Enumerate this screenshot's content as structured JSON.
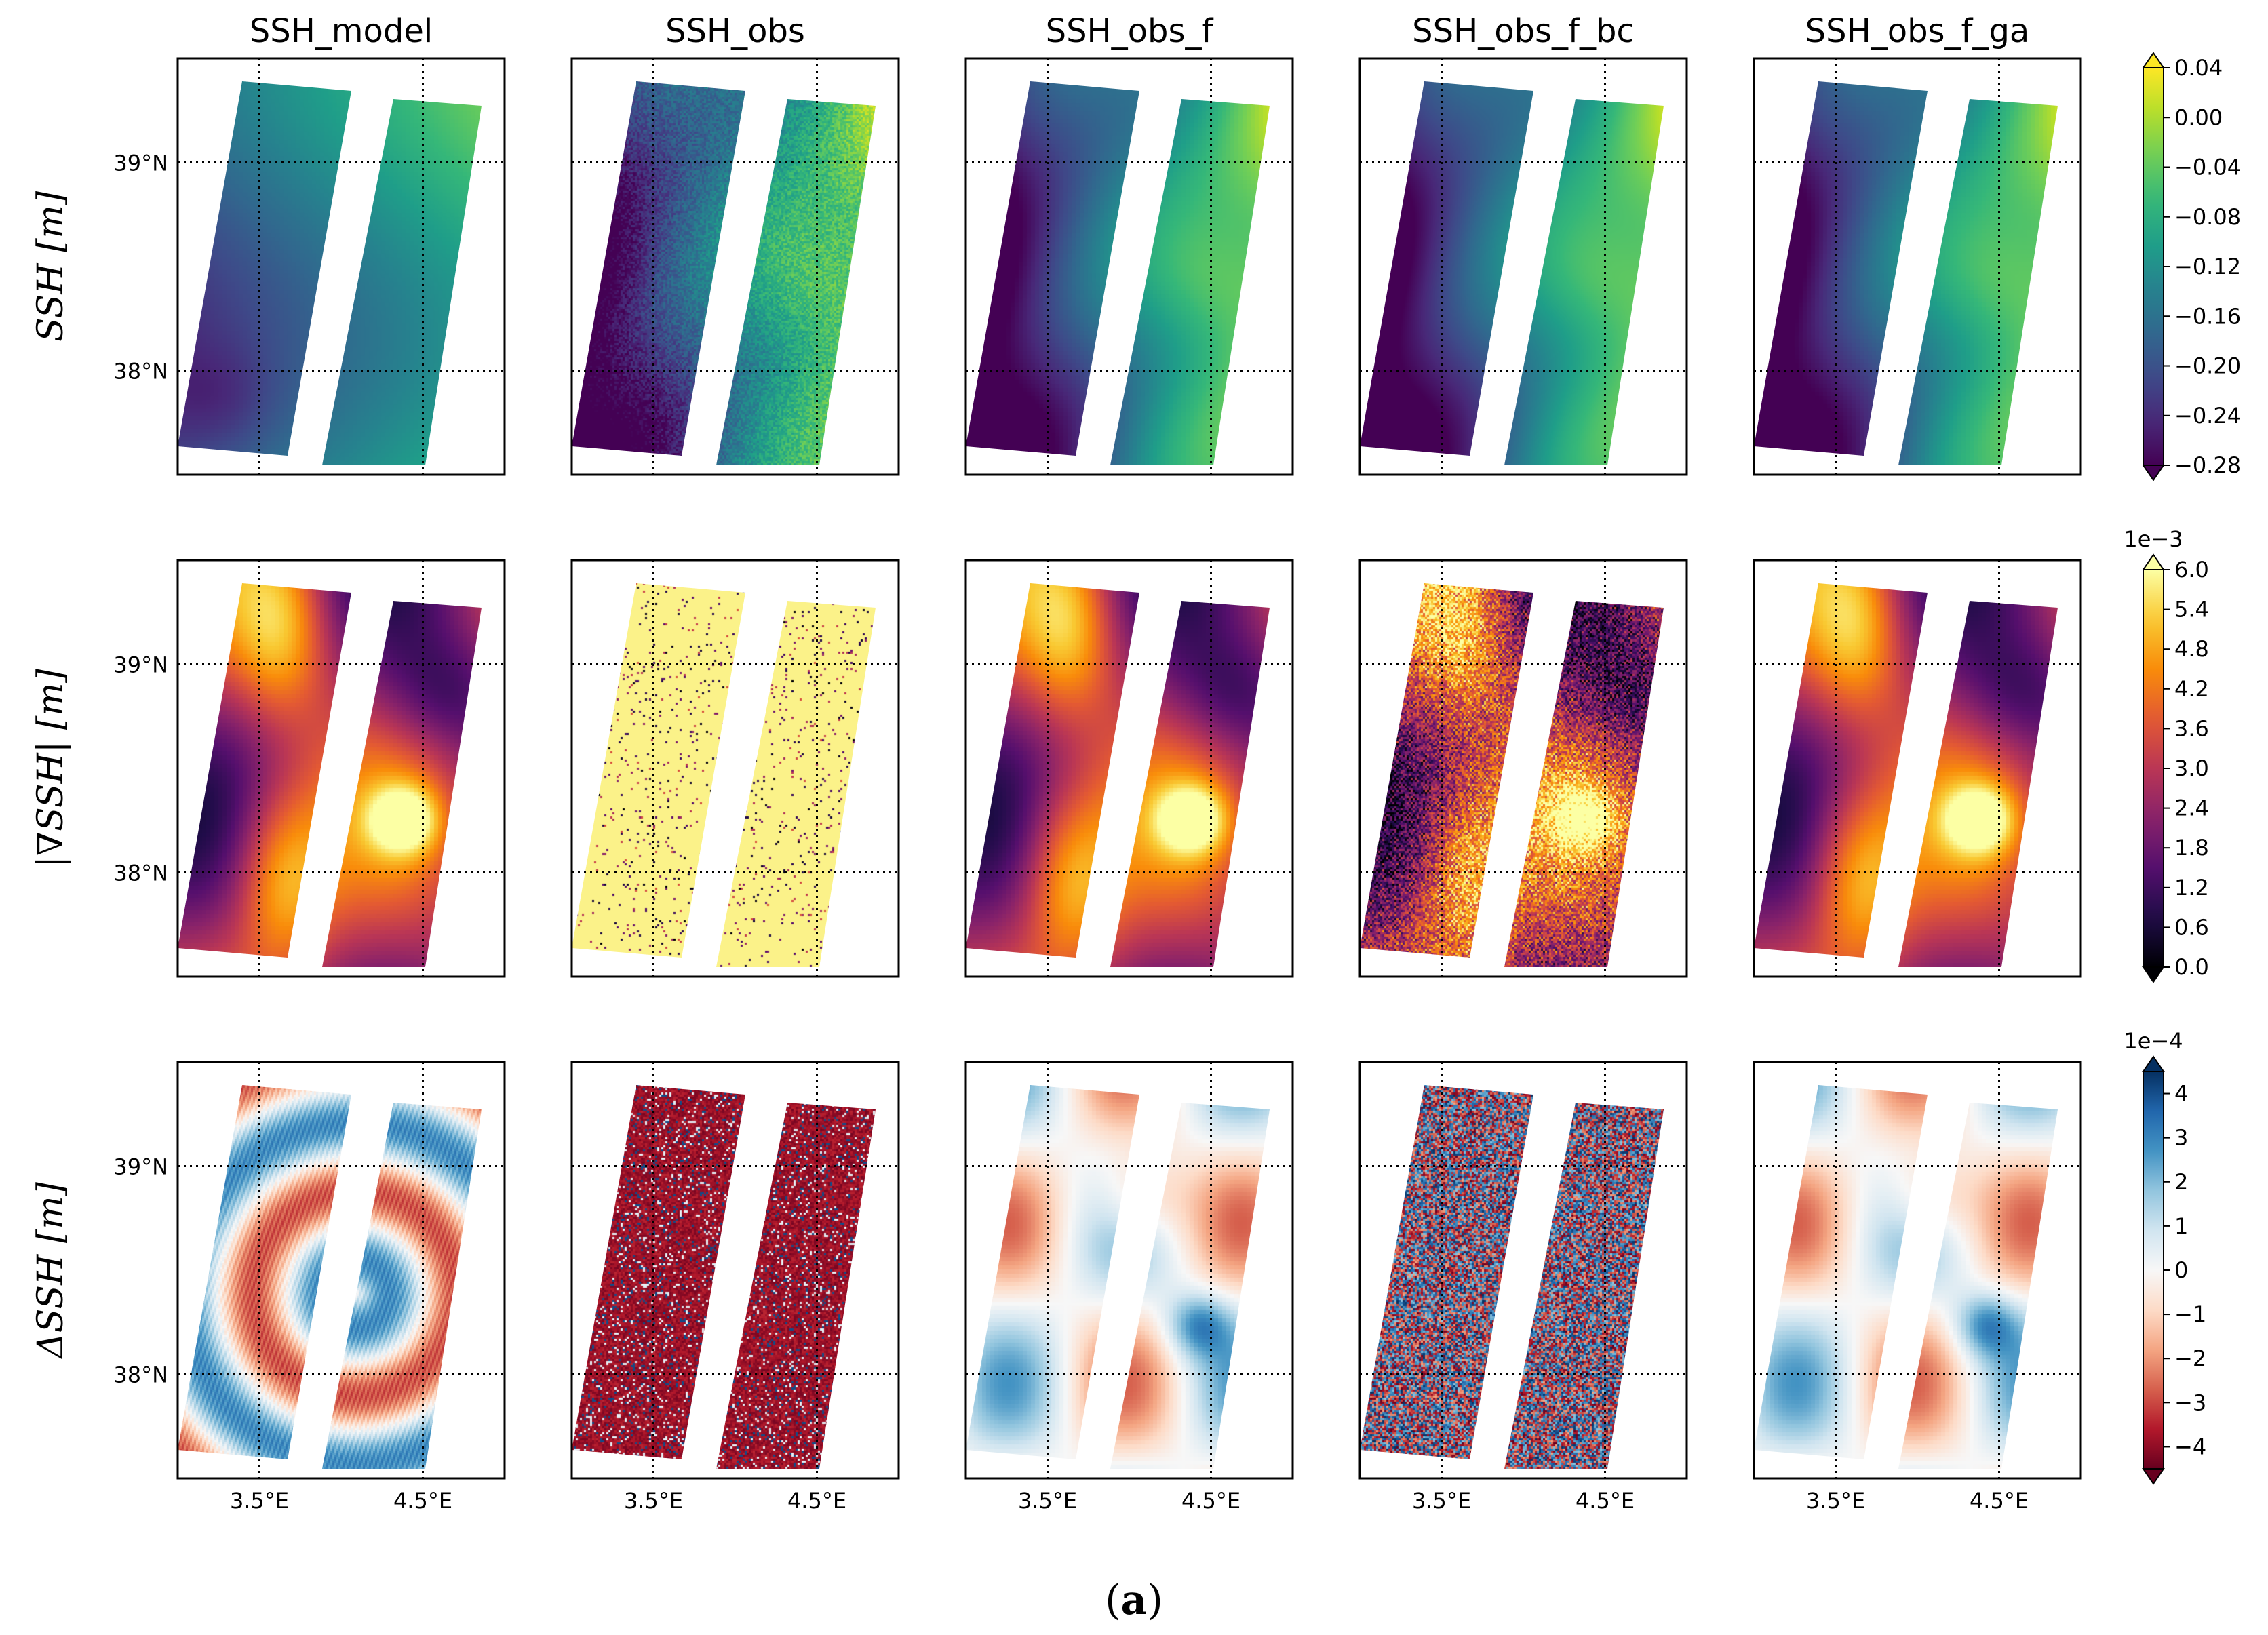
{
  "chart_data": {
    "type": "heatmap",
    "figure_label": "a",
    "columns": [
      "SSH_model",
      "SSH_obs",
      "SSH_obs_f",
      "SSH_obs_f_bc",
      "SSH_obs_f_ga"
    ],
    "lon_ticks": [
      {
        "value": 3.5,
        "label": "3.5°E"
      },
      {
        "value": 4.5,
        "label": "4.5°E"
      }
    ],
    "lat_ticks": [
      {
        "value": 39.0,
        "label": "39°N"
      },
      {
        "value": 38.0,
        "label": "38°N"
      }
    ],
    "lon_range": [
      3.0,
      5.0
    ],
    "lat_range": [
      37.5,
      39.5
    ],
    "rows": [
      {
        "label": "SSH [m]",
        "colormap": "viridis",
        "colorbar_exponent": "",
        "colorbar_min": -0.28,
        "colorbar_max": 0.04,
        "colorbar_ticks": [
          "0.04",
          "0.00",
          "−0.04",
          "−0.08",
          "−0.12",
          "−0.16",
          "−0.20",
          "−0.24",
          "−0.28"
        ],
        "field": "ssh"
      },
      {
        "label": "|∇SSH| [m]",
        "colormap": "inferno",
        "colorbar_exponent": "1e−3",
        "colorbar_min": 0.0,
        "colorbar_max": 6.0,
        "colorbar_ticks": [
          "6.0",
          "5.4",
          "4.8",
          "4.2",
          "3.6",
          "3.0",
          "2.4",
          "1.8",
          "1.2",
          "0.6",
          "0.0"
        ],
        "field": "grad"
      },
      {
        "label": "ΔSSH [m]",
        "colormap": "RdBu",
        "colorbar_exponent": "1e−4",
        "colorbar_min": -4.5,
        "colorbar_max": 4.5,
        "colorbar_ticks": [
          "4",
          "3",
          "2",
          "1",
          "0",
          "−1",
          "−2",
          "−3",
          "−4"
        ],
        "field": "lap"
      }
    ]
  },
  "colors": {
    "gridline": "#000000",
    "background": "#ffffff"
  }
}
